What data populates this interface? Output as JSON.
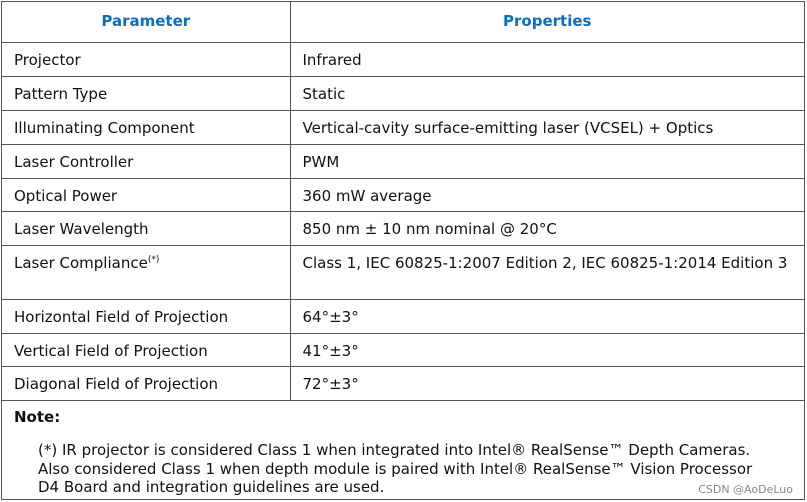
{
  "table": {
    "header": [
      "Parameter",
      "Properties"
    ],
    "rows": [
      {
        "parameter": "Projector",
        "properties": "Infrared"
      },
      {
        "parameter": "Pattern Type",
        "properties": "Static"
      },
      {
        "parameter": "Illuminating Component",
        "properties": "Vertical-cavity surface-emitting laser (VCSEL) + Optics"
      },
      {
        "parameter": "Laser Controller",
        "properties": "PWM"
      },
      {
        "parameter": "Optical Power",
        "properties": "360 mW average"
      },
      {
        "parameter": "Laser Wavelength",
        "properties": "850 nm ± 10 nm nominal @ 20°C"
      },
      {
        "parameter": "Laser Compliance",
        "mark": "(*)",
        "properties": "Class 1, IEC 60825-1:2007 Edition 2, IEC 60825-1:2014 Edition 3"
      },
      {
        "parameter": "Horizontal Field of Projection",
        "properties": "64°±3°"
      },
      {
        "parameter": "Vertical Field of Projection",
        "properties": "41°±3°"
      },
      {
        "parameter": "Diagonal Field of Projection",
        "properties": "72°±3°"
      }
    ],
    "note": {
      "title": "Note:",
      "text": "(*) IR projector is considered Class 1 when integrated into Intel® RealSense™ Depth Cameras. Also considered Class 1 when depth module is paired with Intel® RealSense™ Vision Processor D4 Board and integration guidelines are used."
    }
  },
  "watermark": "CSDN @AoDeLuo"
}
